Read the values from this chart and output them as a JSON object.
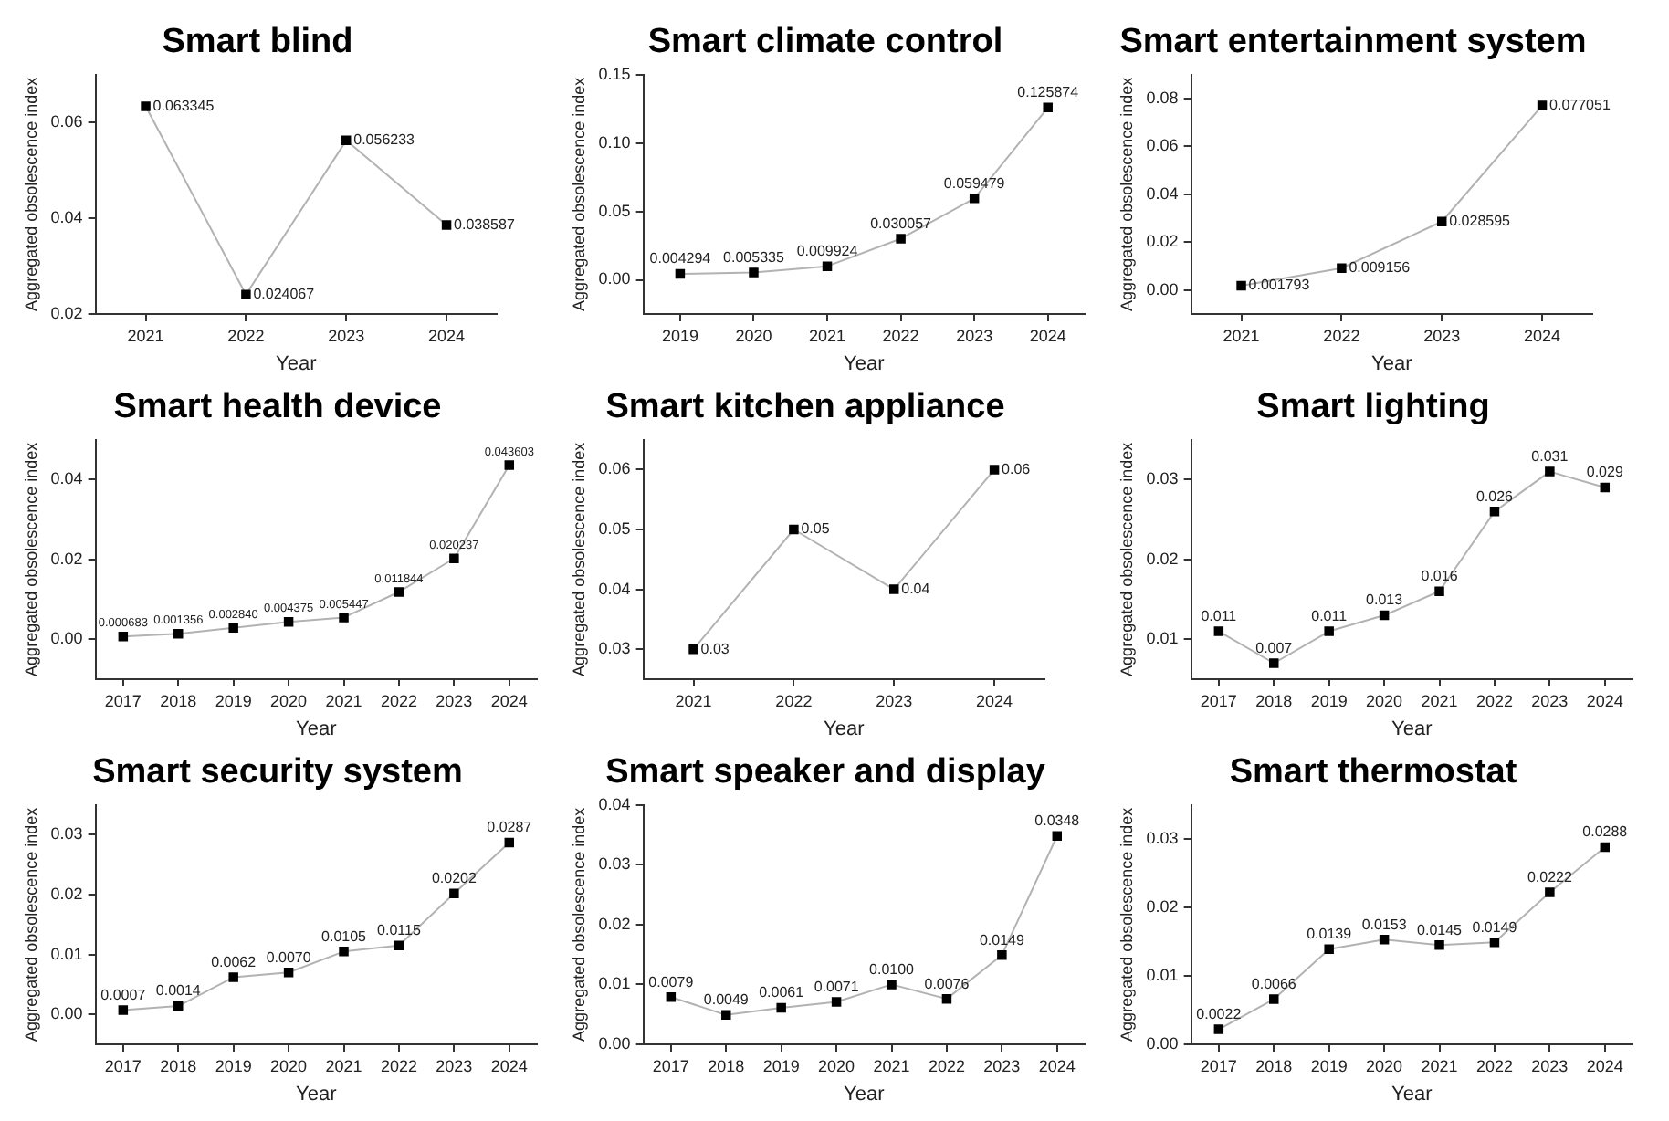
{
  "chart_data": [
    {
      "type": "line",
      "title": "Smart blind",
      "xlabel": "Year",
      "ylabel": "Aggregated obsolescence index",
      "categories": [
        "2021",
        "2022",
        "2023",
        "2024"
      ],
      "series": [
        {
          "color": "#000000",
          "values": [
            0.063345,
            0.024067,
            0.056233,
            0.038587
          ],
          "value_labels": [
            "0.063345",
            "0.024067",
            "0.056233",
            "0.038587"
          ]
        }
      ],
      "ylim": [
        0.02,
        0.07
      ],
      "yticks": [
        {
          "value": 0.02,
          "label": "0.02"
        },
        {
          "value": 0.04,
          "label": "0.04"
        },
        {
          "value": 0.06,
          "label": "0.06"
        }
      ],
      "marker": "square"
    },
    {
      "type": "line",
      "title": "Smart climate control",
      "xlabel": "Year",
      "ylabel": "Aggregated obsolescence index",
      "categories": [
        "2019",
        "2020",
        "2021",
        "2022",
        "2023",
        "2024"
      ],
      "series": [
        {
          "color": "#000000",
          "values": [
            0.004294,
            0.005335,
            0.009924,
            0.030057,
            0.059479,
            0.125874
          ],
          "value_labels": [
            "0.004294",
            "0.005335",
            "0.009924",
            "0.030057",
            "0.059479",
            "0.125874"
          ]
        }
      ],
      "ylim": [
        -0.025,
        0.15
      ],
      "yticks": [
        {
          "value": 0,
          "label": "0.00"
        },
        {
          "value": 0.05,
          "label": "0.05"
        },
        {
          "value": 0.1,
          "label": "0.10"
        },
        {
          "value": 0.15,
          "label": "0.15"
        }
      ],
      "marker": "square"
    },
    {
      "type": "line",
      "title": "Smart entertainment system",
      "xlabel": "Year",
      "ylabel": "Aggregated obsolescence index",
      "categories": [
        "2021",
        "2022",
        "2023",
        "2024"
      ],
      "series": [
        {
          "color": "#000000",
          "values": [
            0.001793,
            0.009156,
            0.028595,
            0.077051
          ],
          "value_labels": [
            "0.001793",
            "0.009156",
            "0.028595",
            "0.077051"
          ]
        }
      ],
      "ylim": [
        -0.01,
        0.09
      ],
      "yticks": [
        {
          "value": 0,
          "label": "0.00"
        },
        {
          "value": 0.02,
          "label": "0.02"
        },
        {
          "value": 0.04,
          "label": "0.04"
        },
        {
          "value": 0.06,
          "label": "0.06"
        },
        {
          "value": 0.08,
          "label": "0.08"
        }
      ],
      "marker": "square"
    },
    {
      "type": "line",
      "title": "Smart health device",
      "xlabel": "Year",
      "ylabel": "Aggregated obsolescence index",
      "categories": [
        "2017",
        "2018",
        "2019",
        "2020",
        "2021",
        "2022",
        "2023",
        "2024"
      ],
      "series": [
        {
          "color": "#000000",
          "values": [
            0.000683,
            0.001356,
            0.00284,
            0.004375,
            0.005447,
            0.011844,
            0.020237,
            0.043603
          ],
          "value_labels": [
            "0.000683",
            "0.001356",
            "0.002840",
            "0.004375",
            "0.005447",
            "0.011844",
            "0.020237",
            "0.043603"
          ]
        }
      ],
      "ylim": [
        -0.01,
        0.05
      ],
      "yticks": [
        {
          "value": 0,
          "label": "0.00"
        },
        {
          "value": 0.02,
          "label": "0.02"
        },
        {
          "value": 0.04,
          "label": "0.04"
        }
      ],
      "marker": "square"
    },
    {
      "type": "line",
      "title": "Smart kitchen appliance",
      "xlabel": "Year",
      "ylabel": "Aggregated obsolescence index",
      "categories": [
        "2021",
        "2022",
        "2023",
        "2024"
      ],
      "series": [
        {
          "color": "#000000",
          "values": [
            0.03,
            0.05,
            0.04,
            0.06
          ],
          "value_labels": [
            "0.03",
            "0.05",
            "0.04",
            "0.06"
          ]
        }
      ],
      "ylim": [
        0.025,
        0.065
      ],
      "yticks": [
        {
          "value": 0.03,
          "label": "0.03"
        },
        {
          "value": 0.04,
          "label": "0.04"
        },
        {
          "value": 0.05,
          "label": "0.05"
        },
        {
          "value": 0.06,
          "label": "0.06"
        }
      ],
      "marker": "square"
    },
    {
      "type": "line",
      "title": "Smart lighting",
      "xlabel": "Year",
      "ylabel": "Aggregated obsolescence index",
      "categories": [
        "2017",
        "2018",
        "2019",
        "2020",
        "2021",
        "2022",
        "2023",
        "2024"
      ],
      "series": [
        {
          "color": "#000000",
          "values": [
            0.011,
            0.007,
            0.011,
            0.013,
            0.016,
            0.026,
            0.031,
            0.029
          ],
          "value_labels": [
            "0.011",
            "0.007",
            "0.011",
            "0.013",
            "0.016",
            "0.026",
            "0.031",
            "0.029"
          ]
        }
      ],
      "ylim": [
        0.005,
        0.035
      ],
      "yticks": [
        {
          "value": 0.01,
          "label": "0.01"
        },
        {
          "value": 0.02,
          "label": "0.02"
        },
        {
          "value": 0.03,
          "label": "0.03"
        }
      ],
      "marker": "square"
    },
    {
      "type": "line",
      "title": "Smart security system",
      "xlabel": "Year",
      "ylabel": "Aggregated obsolescence index",
      "categories": [
        "2017",
        "2018",
        "2019",
        "2020",
        "2021",
        "2022",
        "2023",
        "2024"
      ],
      "series": [
        {
          "color": "#000000",
          "values": [
            0.0007,
            0.0014,
            0.0062,
            0.007,
            0.0105,
            0.0115,
            0.0202,
            0.0287
          ],
          "value_labels": [
            "0.0007",
            "0.0014",
            "0.0062",
            "0.0070",
            "0.0105",
            "0.0115",
            "0.0202",
            "0.0287"
          ]
        }
      ],
      "ylim": [
        -0.005,
        0.035
      ],
      "yticks": [
        {
          "value": 0,
          "label": "0.00"
        },
        {
          "value": 0.01,
          "label": "0.01"
        },
        {
          "value": 0.02,
          "label": "0.02"
        },
        {
          "value": 0.03,
          "label": "0.03"
        }
      ],
      "marker": "square"
    },
    {
      "type": "line",
      "title": "Smart speaker and display",
      "xlabel": "Year",
      "ylabel": "Aggregated obsolescence index",
      "categories": [
        "2017",
        "2018",
        "2019",
        "2020",
        "2021",
        "2022",
        "2023",
        "2024"
      ],
      "series": [
        {
          "color": "#000000",
          "values": [
            0.0079,
            0.0049,
            0.0061,
            0.0071,
            0.01,
            0.0076,
            0.0149,
            0.0348
          ],
          "value_labels": [
            "0.0079",
            "0.0049",
            "0.0061",
            "0.0071",
            "0.0100",
            "0.0076",
            "0.0149",
            "0.0348"
          ]
        }
      ],
      "ylim": [
        0,
        0.04
      ],
      "yticks": [
        {
          "value": 0,
          "label": "0.00"
        },
        {
          "value": 0.01,
          "label": "0.01"
        },
        {
          "value": 0.02,
          "label": "0.02"
        },
        {
          "value": 0.03,
          "label": "0.03"
        },
        {
          "value": 0.04,
          "label": "0.04"
        }
      ],
      "marker": "square"
    },
    {
      "type": "line",
      "title": "Smart thermostat",
      "xlabel": "Year",
      "ylabel": "Aggregated obsolescence index",
      "categories": [
        "2017",
        "2018",
        "2019",
        "2020",
        "2021",
        "2022",
        "2023",
        "2024"
      ],
      "series": [
        {
          "color": "#000000",
          "values": [
            0.0022,
            0.0066,
            0.0139,
            0.0153,
            0.0145,
            0.0149,
            0.0222,
            0.0288
          ],
          "value_labels": [
            "0.0022",
            "0.0066",
            "0.0139",
            "0.0153",
            "0.0145",
            "0.0149",
            "0.0222",
            "0.0288"
          ]
        }
      ],
      "ylim": [
        0,
        0.035
      ],
      "yticks": [
        {
          "value": 0,
          "label": "0.00"
        },
        {
          "value": 0.01,
          "label": "0.01"
        },
        {
          "value": 0.02,
          "label": "0.02"
        },
        {
          "value": 0.03,
          "label": "0.03"
        }
      ],
      "marker": "square"
    }
  ]
}
